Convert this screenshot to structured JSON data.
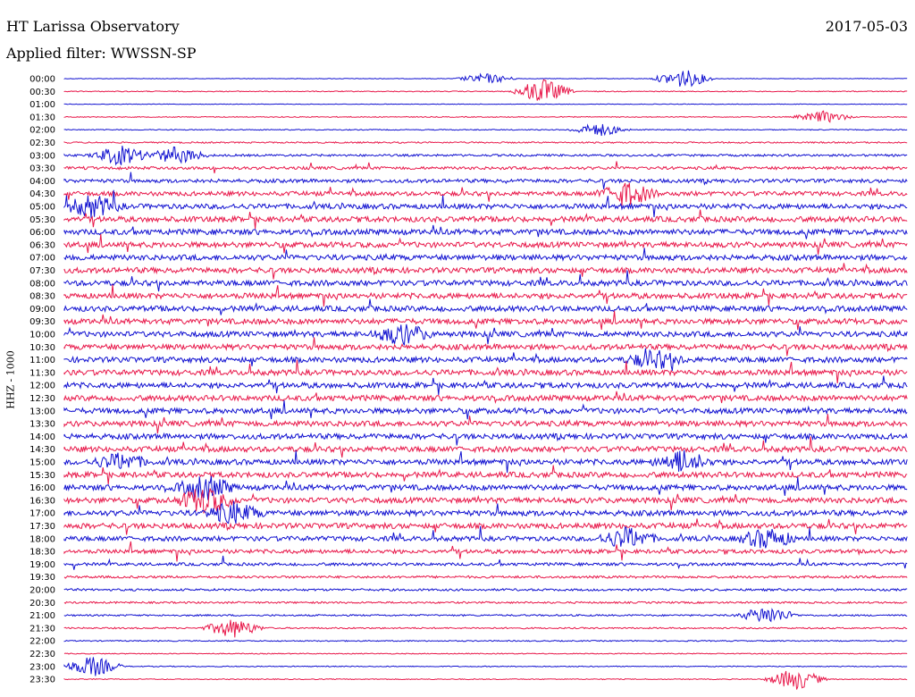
{
  "header": {
    "station": "HT Larissa Observatory",
    "filter_label": "Applied filter: WWSSN-SP",
    "date": "2017-05-03"
  },
  "chart_data": {
    "type": "helicorder",
    "title": "HT Larissa Observatory",
    "subtitle": "Applied filter: WWSSN-SP",
    "date": "2017-05-03",
    "ylabel": "HHZ - 1000",
    "row_labels": [
      "00:00",
      "00:30",
      "01:00",
      "01:30",
      "02:00",
      "02:30",
      "03:00",
      "03:30",
      "04:00",
      "04:30",
      "05:00",
      "05:30",
      "06:00",
      "06:30",
      "07:00",
      "07:30",
      "08:00",
      "08:30",
      "09:00",
      "09:30",
      "10:00",
      "10:30",
      "11:00",
      "11:30",
      "12:00",
      "12:30",
      "13:00",
      "13:30",
      "14:00",
      "14:30",
      "15:00",
      "15:30",
      "16:00",
      "16:30",
      "17:00",
      "17:30",
      "18:00",
      "18:30",
      "19:00",
      "19:30",
      "20:00",
      "20:30",
      "21:00",
      "21:30",
      "22:00",
      "22:30",
      "23:00",
      "23:30"
    ],
    "colors": [
      "#1010d0",
      "#e8184a"
    ],
    "noise_level": [
      0.3,
      0.5,
      0.3,
      0.5,
      0.5,
      0.8,
      1.2,
      1.6,
      2.0,
      2.4,
      2.8,
      3.0,
      3.0,
      3.0,
      3.0,
      3.0,
      3.0,
      3.0,
      3.0,
      3.0,
      3.0,
      3.0,
      3.0,
      3.0,
      3.0,
      3.0,
      3.0,
      3.0,
      3.0,
      3.0,
      3.0,
      3.0,
      3.0,
      3.0,
      3.0,
      3.0,
      2.6,
      2.2,
      1.6,
      1.3,
      1.2,
      1.0,
      0.9,
      0.8,
      0.6,
      0.5,
      0.5,
      0.5
    ],
    "bursts": [
      {
        "row": 0,
        "minute": 22,
        "amp": 1.5
      },
      {
        "row": 0,
        "minute": 15,
        "amp": 0.8
      },
      {
        "row": 1,
        "minute": 17,
        "amp": 2.0
      },
      {
        "row": 3,
        "minute": 27,
        "amp": 0.9
      },
      {
        "row": 4,
        "minute": 19,
        "amp": 1.0
      },
      {
        "row": 6,
        "minute": 2,
        "amp": 1.5
      },
      {
        "row": 6,
        "minute": 4,
        "amp": 1.3
      },
      {
        "row": 10,
        "minute": 1,
        "amp": 1.6
      },
      {
        "row": 9,
        "minute": 20,
        "amp": 1.8
      },
      {
        "row": 20,
        "minute": 12,
        "amp": 1.5
      },
      {
        "row": 22,
        "minute": 21,
        "amp": 1.3
      },
      {
        "row": 30,
        "minute": 2,
        "amp": 1.2
      },
      {
        "row": 30,
        "minute": 22,
        "amp": 1.6
      },
      {
        "row": 32,
        "minute": 5,
        "amp": 1.8
      },
      {
        "row": 33,
        "minute": 5,
        "amp": 2.0
      },
      {
        "row": 34,
        "minute": 6,
        "amp": 1.6
      },
      {
        "row": 36,
        "minute": 20,
        "amp": 1.6
      },
      {
        "row": 36,
        "minute": 25,
        "amp": 1.5
      },
      {
        "row": 42,
        "minute": 25,
        "amp": 1.4
      },
      {
        "row": 43,
        "minute": 6,
        "amp": 1.5
      },
      {
        "row": 46,
        "minute": 1,
        "amp": 1.6
      },
      {
        "row": 47,
        "minute": 26,
        "amp": 1.7
      }
    ]
  }
}
